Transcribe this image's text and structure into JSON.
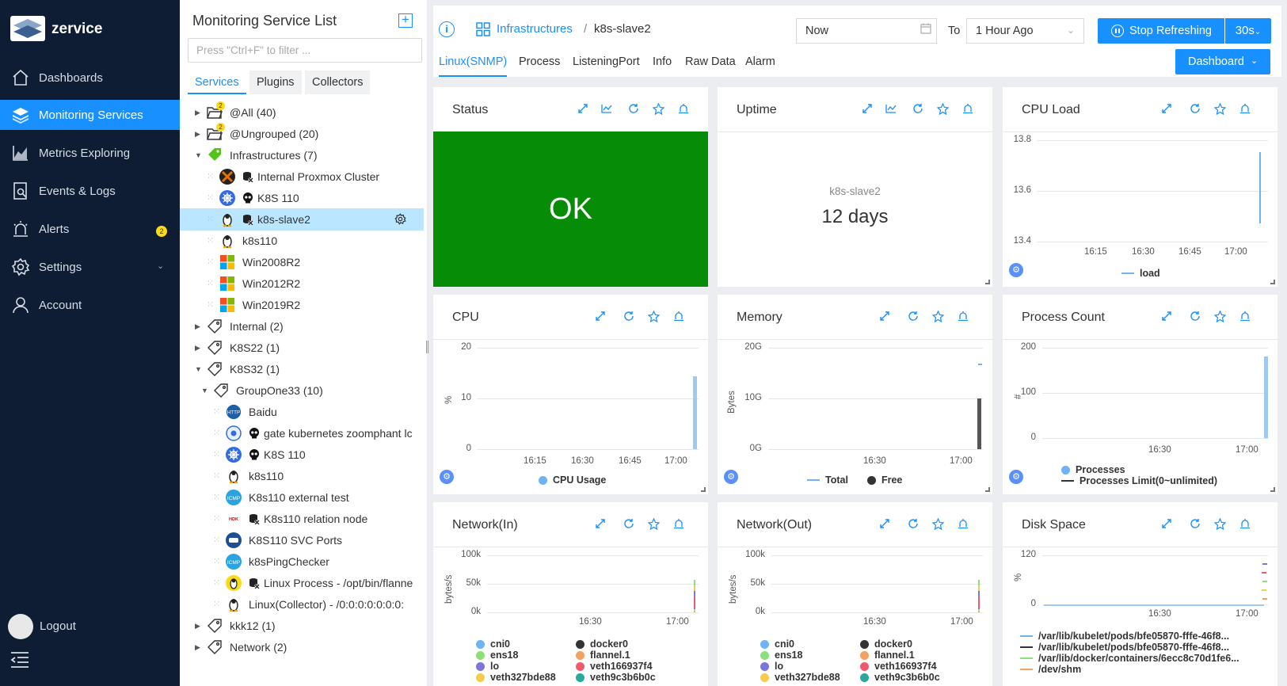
{
  "sidebar": {
    "brand": "zervice",
    "items": [
      {
        "label": "Dashboards",
        "icon": "home-icon"
      },
      {
        "label": "Monitoring Services",
        "icon": "layers-icon"
      },
      {
        "label": "Metrics Exploring",
        "icon": "chart-icon"
      },
      {
        "label": "Events & Logs",
        "icon": "log-search-icon"
      },
      {
        "label": "Alerts",
        "icon": "alarm-icon",
        "badge": "2"
      },
      {
        "label": "Settings",
        "icon": "gear-icon"
      },
      {
        "label": "Account",
        "icon": "user-icon"
      }
    ],
    "logout": "Logout"
  },
  "list_panel": {
    "title": "Monitoring Service List",
    "filter_placeholder": "Press \"Ctrl+F\" to filter ...",
    "tabs": [
      "Services",
      "Plugins",
      "Collectors"
    ],
    "tree": [
      {
        "label": "@All (40)",
        "badge": "2"
      },
      {
        "label": "@Ungrouped (20)",
        "badge": "2"
      },
      {
        "label": "Infrastructures (7)"
      },
      {
        "label": "Internal Proxmox Cluster"
      },
      {
        "label": "K8S 110"
      },
      {
        "label": "k8s-slave2"
      },
      {
        "label": "k8s110"
      },
      {
        "label": "Win2008R2"
      },
      {
        "label": "Win2012R2"
      },
      {
        "label": "Win2019R2"
      },
      {
        "label": "Internal (2)"
      },
      {
        "label": "K8S22 (1)"
      },
      {
        "label": "K8S32 (1)"
      },
      {
        "label": "GroupOne33 (10)"
      },
      {
        "label": "Baidu"
      },
      {
        "label": "gate kubernetes zoomphant lc"
      },
      {
        "label": "K8S 110"
      },
      {
        "label": "k8s110"
      },
      {
        "label": "K8s110 external test"
      },
      {
        "label": "K8s110 relation node"
      },
      {
        "label": "K8S110 SVC Ports"
      },
      {
        "label": "k8sPingChecker"
      },
      {
        "label": "Linux Process - /opt/bin/flanne"
      },
      {
        "label": "Linux(Collector) - /0:0:0:0:0:0:0:"
      },
      {
        "label": "kkk12 (1)"
      },
      {
        "label": "Network (2)"
      }
    ]
  },
  "breadcrumb": {
    "parent": "Infrastructures",
    "sep": "/",
    "current": "k8s-slave2"
  },
  "time": {
    "from": "Now",
    "to_label": "To",
    "to": "1 Hour Ago",
    "stop_label": "Stop Refreshing",
    "interval": "30s"
  },
  "subtabs": [
    "Linux(SNMP)",
    "Process",
    "ListeningPort",
    "Info",
    "Raw Data",
    "Alarm"
  ],
  "dashboard_btn": "Dashboard",
  "panels": {
    "status": {
      "title": "Status",
      "value": "OK",
      "color": "#068c06"
    },
    "uptime": {
      "title": "Uptime",
      "host": "k8s-slave2",
      "value": "12 days"
    },
    "cpuload": {
      "title": "CPU Load",
      "y_ticks": [
        "13.8",
        "13.6",
        "13.4"
      ],
      "x_ticks": [
        "16:15",
        "16:30",
        "16:45",
        "17:00"
      ],
      "legend": "load"
    },
    "cpu": {
      "title": "CPU",
      "ylabel": "%",
      "y_ticks": [
        "20",
        "10",
        "0"
      ],
      "x_ticks": [
        "16:15",
        "16:30",
        "16:45",
        "17:00"
      ],
      "legend": "CPU Usage"
    },
    "memory": {
      "title": "Memory",
      "ylabel": "Bytes",
      "y_ticks": [
        "20G",
        "10G",
        "0G"
      ],
      "x_ticks": [
        "16:30",
        "17:00"
      ],
      "legend": [
        "Total",
        "Free"
      ]
    },
    "proccount": {
      "title": "Process Count",
      "ylabel": "#",
      "y_ticks": [
        "200",
        "100",
        "0"
      ],
      "x_ticks": [
        "16:30",
        "17:00"
      ],
      "legend": [
        "Processes",
        "Processes Limit(0~unlimited)"
      ]
    },
    "netin": {
      "title": "Network(In)",
      "ylabel": "bytes/s",
      "y_ticks": [
        "100k",
        "50k",
        "0k"
      ],
      "x_ticks": [
        "16:30",
        "17:00"
      ],
      "legend": [
        "cni0",
        "docker0",
        "ens18",
        "flannel.1",
        "lo",
        "veth166937f4",
        "veth327bde88",
        "veth9c3b6b0c"
      ]
    },
    "netout": {
      "title": "Network(Out)",
      "ylabel": "bytes/s",
      "y_ticks": [
        "100k",
        "50k",
        "0k"
      ],
      "x_ticks": [
        "16:30",
        "17:00"
      ],
      "legend": [
        "cni0",
        "docker0",
        "ens18",
        "flannel.1",
        "lo",
        "veth166937f4",
        "veth327bde88",
        "veth9c3b6b0c"
      ]
    },
    "disk": {
      "title": "Disk Space",
      "ylabel": "%",
      "y_ticks": [
        "120",
        "0"
      ],
      "x_ticks": [
        "16:30",
        "17:00"
      ],
      "legend": [
        "/var/lib/kubelet/pods/bfe05870-fffe-46f8...",
        "/var/lib/kubelet/pods/bfe05870-fffe-46f8...",
        "/var/lib/docker/containers/6ecc8c70d1fe6...",
        "/dev/shm"
      ]
    }
  }
}
